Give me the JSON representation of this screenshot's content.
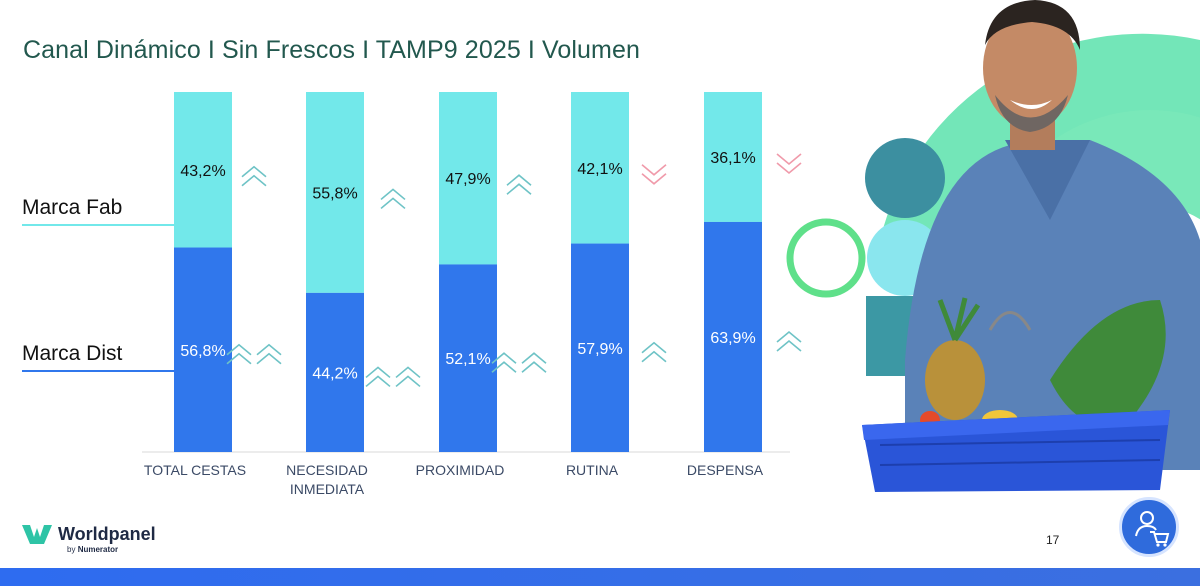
{
  "title": "Canal Dinámico I Sin Frescos I TAMP9 2025 I Volumen",
  "legend": {
    "fab": "Marca Fab",
    "dist": "Marca Dist"
  },
  "colors": {
    "fab": "#72e8ea",
    "dist": "#3077ec",
    "up": "#6ec3c6",
    "down": "#f09aaa",
    "title": "#22584e"
  },
  "chart_data": {
    "type": "bar",
    "stacked": true,
    "percent": true,
    "categories": [
      "TOTAL CESTAS",
      "NECESIDAD\nINMEDIATA",
      "PROXIMIDAD",
      "RUTINA",
      "DESPENSA"
    ],
    "series": [
      {
        "name": "Marca Dist",
        "values": [
          56.8,
          44.2,
          52.1,
          57.9,
          63.9
        ],
        "labels": [
          "56,8%",
          "44,2%",
          "52,1%",
          "57,9%",
          "63,9%"
        ],
        "trend": [
          "double-up",
          "double-up",
          "double-up",
          "up",
          "up"
        ]
      },
      {
        "name": "Marca Fab",
        "values": [
          43.2,
          55.8,
          47.9,
          42.1,
          36.1
        ],
        "labels": [
          "43,2%",
          "55,8%",
          "47,9%",
          "42,1%",
          "36,1%"
        ],
        "trend": [
          "up",
          "up",
          "up",
          "down",
          "down"
        ]
      }
    ],
    "ylim": [
      0,
      100
    ]
  },
  "footer": {
    "brand": "Worldpanel",
    "by": "by",
    "sub_brand": "Numerator",
    "page": "17"
  }
}
